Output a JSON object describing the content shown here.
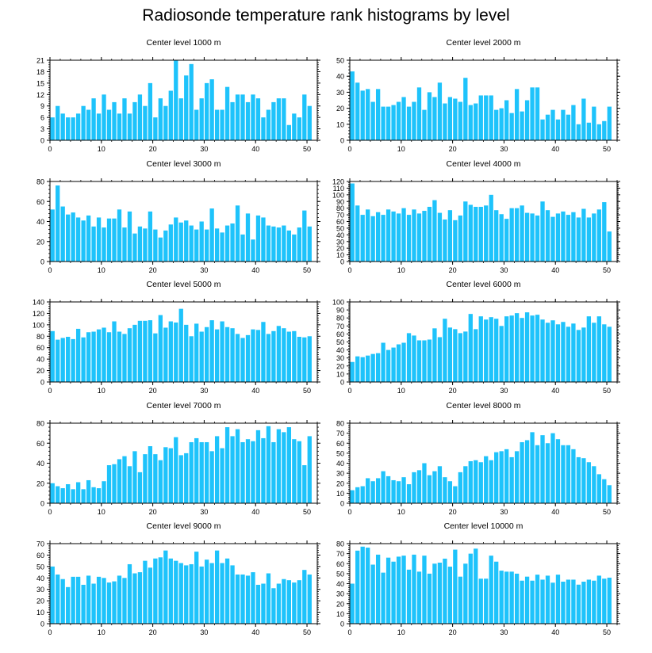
{
  "title": "Radiosonde temperature rank histograms by level",
  "colors": {
    "bar": "#1ec3fb",
    "axis": "#000000"
  },
  "chart_data": [
    {
      "type": "bar",
      "title": "Center level 1000 m",
      "ylim": [
        0,
        21
      ],
      "yticks": [
        0,
        3,
        6,
        9,
        12,
        15,
        18,
        21
      ],
      "xticks": [
        0,
        10,
        20,
        30,
        40,
        50
      ],
      "values": [
        6,
        9,
        7,
        6,
        6,
        7,
        9,
        8,
        11,
        7,
        12,
        8,
        10,
        7,
        11,
        7,
        10,
        12,
        9,
        15,
        6,
        11,
        9,
        13,
        21,
        11,
        17,
        20,
        8,
        11,
        15,
        16,
        8,
        8,
        14,
        10,
        12,
        12,
        10,
        12,
        11,
        6,
        8,
        10,
        11,
        11,
        4,
        7,
        6,
        12,
        9
      ]
    },
    {
      "type": "bar",
      "title": "Center level 2000 m",
      "ylim": [
        0,
        50
      ],
      "yticks": [
        0,
        10,
        20,
        30,
        40,
        50
      ],
      "xticks": [
        0,
        10,
        20,
        30,
        40,
        50
      ],
      "values": [
        43,
        36,
        31,
        32,
        24,
        32,
        21,
        21,
        22,
        24,
        27,
        21,
        24,
        33,
        19,
        30,
        27,
        36,
        23,
        27,
        26,
        24,
        39,
        22,
        23,
        28,
        28,
        28,
        19,
        20,
        25,
        17,
        32,
        18,
        25,
        33,
        33,
        13,
        16,
        19,
        13,
        19,
        16,
        22,
        10,
        26,
        11,
        21,
        10,
        12,
        21
      ]
    },
    {
      "type": "bar",
      "title": "Center level 3000 m",
      "ylim": [
        0,
        80
      ],
      "yticks": [
        0,
        20,
        40,
        60,
        80
      ],
      "xticks": [
        0,
        10,
        20,
        30,
        40,
        50
      ],
      "values": [
        52,
        76,
        55,
        47,
        49,
        44,
        41,
        46,
        35,
        44,
        34,
        43,
        43,
        52,
        34,
        50,
        28,
        35,
        33,
        50,
        32,
        24,
        31,
        37,
        44,
        39,
        41,
        36,
        32,
        40,
        32,
        53,
        33,
        29,
        36,
        38,
        56,
        27,
        48,
        22,
        46,
        44,
        36,
        35,
        34,
        36,
        31,
        27,
        34,
        51,
        35
      ]
    },
    {
      "type": "bar",
      "title": "Center level 4000 m",
      "ylim": [
        0,
        120
      ],
      "yticks": [
        0,
        10,
        20,
        30,
        40,
        50,
        60,
        70,
        80,
        90,
        100,
        110,
        120
      ],
      "xticks": [
        0,
        10,
        20,
        30,
        40,
        50
      ],
      "values": [
        117,
        84,
        70,
        78,
        68,
        74,
        70,
        78,
        75,
        72,
        80,
        70,
        78,
        72,
        76,
        82,
        92,
        73,
        63,
        77,
        62,
        69,
        90,
        85,
        82,
        82,
        84,
        100,
        77,
        71,
        64,
        80,
        80,
        84,
        73,
        72,
        69,
        90,
        77,
        67,
        72,
        75,
        70,
        74,
        66,
        79,
        66,
        72,
        78,
        89,
        45
      ]
    },
    {
      "type": "bar",
      "title": "Center level 5000 m",
      "ylim": [
        0,
        140
      ],
      "yticks": [
        0,
        20,
        40,
        60,
        80,
        100,
        120,
        140
      ],
      "xticks": [
        0,
        10,
        20,
        30,
        40,
        50
      ],
      "values": [
        89,
        74,
        77,
        79,
        75,
        93,
        78,
        87,
        88,
        92,
        95,
        87,
        106,
        88,
        84,
        94,
        100,
        107,
        107,
        108,
        85,
        117,
        95,
        106,
        104,
        128,
        100,
        80,
        102,
        88,
        96,
        108,
        92,
        106,
        96,
        94,
        84,
        77,
        82,
        92,
        91,
        105,
        84,
        89,
        98,
        94,
        88,
        89,
        79,
        78,
        80
      ]
    },
    {
      "type": "bar",
      "title": "Center level 6000 m",
      "ylim": [
        0,
        100
      ],
      "yticks": [
        0,
        10,
        20,
        30,
        40,
        50,
        60,
        70,
        80,
        90,
        100
      ],
      "xticks": [
        0,
        10,
        20,
        30,
        40,
        50
      ],
      "values": [
        25,
        32,
        31,
        33,
        35,
        36,
        49,
        40,
        43,
        47,
        49,
        61,
        58,
        52,
        52,
        53,
        67,
        56,
        79,
        68,
        66,
        61,
        63,
        85,
        66,
        82,
        78,
        81,
        79,
        70,
        82,
        83,
        86,
        80,
        87,
        83,
        84,
        78,
        74,
        77,
        72,
        75,
        69,
        73,
        65,
        68,
        82,
        74,
        82,
        72,
        69
      ]
    },
    {
      "type": "bar",
      "title": "Center level 7000 m",
      "ylim": [
        0,
        80
      ],
      "yticks": [
        0,
        20,
        40,
        60,
        80
      ],
      "xticks": [
        0,
        10,
        20,
        30,
        40,
        50
      ],
      "values": [
        20,
        17,
        15,
        19,
        14,
        21,
        14,
        23,
        16,
        15,
        22,
        38,
        39,
        44,
        47,
        37,
        52,
        31,
        49,
        57,
        49,
        43,
        56,
        55,
        66,
        48,
        50,
        61,
        65,
        61,
        61,
        52,
        67,
        55,
        76,
        67,
        74,
        61,
        64,
        62,
        73,
        65,
        77,
        61,
        74,
        71,
        76,
        64,
        62,
        38,
        67
      ]
    },
    {
      "type": "bar",
      "title": "Center level 8000 m",
      "ylim": [
        0,
        80
      ],
      "yticks": [
        0,
        10,
        20,
        30,
        40,
        50,
        60,
        70,
        80
      ],
      "xticks": [
        0,
        10,
        20,
        30,
        40,
        50
      ],
      "values": [
        13,
        16,
        17,
        25,
        22,
        25,
        32,
        27,
        23,
        22,
        26,
        19,
        31,
        33,
        40,
        28,
        32,
        37,
        26,
        22,
        17,
        31,
        37,
        42,
        43,
        41,
        47,
        43,
        51,
        52,
        54,
        46,
        52,
        61,
        63,
        71,
        58,
        68,
        60,
        70,
        64,
        58,
        58,
        54,
        46,
        45,
        41,
        37,
        29,
        24,
        18
      ]
    },
    {
      "type": "bar",
      "title": "Center level 9000 m",
      "ylim": [
        0,
        70
      ],
      "yticks": [
        0,
        10,
        20,
        30,
        40,
        50,
        60,
        70
      ],
      "xticks": [
        0,
        10,
        20,
        30,
        40,
        50
      ],
      "values": [
        50,
        43,
        39,
        32,
        41,
        41,
        34,
        42,
        35,
        41,
        40,
        36,
        37,
        42,
        40,
        52,
        44,
        45,
        55,
        49,
        57,
        58,
        64,
        57,
        55,
        53,
        51,
        52,
        63,
        50,
        56,
        53,
        64,
        53,
        57,
        51,
        43,
        43,
        42,
        45,
        34,
        35,
        44,
        31,
        35,
        39,
        38,
        36,
        38,
        47,
        43
      ]
    },
    {
      "type": "bar",
      "title": "Center level 10000 m",
      "ylim": [
        0,
        80
      ],
      "yticks": [
        0,
        10,
        20,
        30,
        40,
        50,
        60,
        70,
        80
      ],
      "xticks": [
        0,
        10,
        20,
        30,
        40,
        50
      ],
      "values": [
        40,
        73,
        77,
        76,
        59,
        69,
        51,
        66,
        62,
        67,
        68,
        54,
        69,
        52,
        68,
        50,
        60,
        61,
        65,
        57,
        74,
        47,
        60,
        70,
        75,
        45,
        45,
        68,
        62,
        53,
        52,
        52,
        50,
        43,
        47,
        43,
        49,
        44,
        48,
        41,
        49,
        42,
        44,
        44,
        39,
        42,
        44,
        43,
        48,
        45,
        46
      ]
    }
  ]
}
